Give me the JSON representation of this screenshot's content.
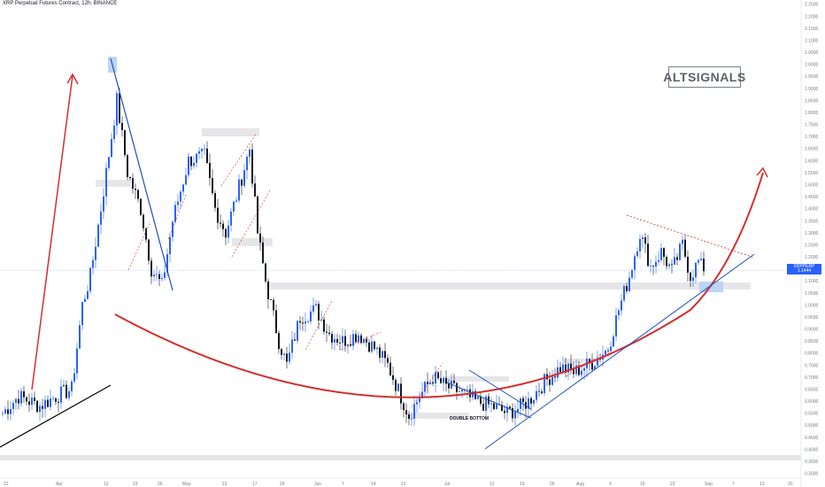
{
  "header": {
    "title": "XRP Perpetual Futures Contract, 12h, BINANCE"
  },
  "brand": {
    "label": "ALTSIGNALS"
  },
  "current_price": {
    "label": "XRPPERP",
    "value": "1.1444",
    "countdown": "03:58:25"
  },
  "annotations": {
    "double_bottom": "DOUBLE BOTTOM"
  },
  "colors": {
    "up": "#2962ff",
    "down": "#131722",
    "curve": "#d32f2f",
    "trendline": "#1e4fb8",
    "zone": "#e6e6e9",
    "blue_zone": "#bcd4f5"
  },
  "chart_data": {
    "type": "candlestick",
    "title": "XRP Perpetual Futures Contract, 12h, BINANCE",
    "x_ticks": [
      "22",
      "Apr",
      "12",
      "19",
      "26",
      "May",
      "10",
      "17",
      "24",
      "Jun",
      "7",
      "14",
      "21",
      "Jul",
      "12",
      "19",
      "26",
      "Aug",
      "9",
      "16",
      "23",
      "Sep",
      "7",
      "13",
      "20"
    ],
    "y_ticks": [
      "2.2500",
      "2.2000",
      "2.1500",
      "2.1000",
      "2.0500",
      "2.0000",
      "1.9500",
      "1.9000",
      "1.8500",
      "1.8000",
      "1.7500",
      "1.7000",
      "1.6500",
      "1.6000",
      "1.5500",
      "1.5000",
      "1.4500",
      "1.4000",
      "1.3500",
      "1.3000",
      "1.2500",
      "1.2000",
      "1.1500",
      "1.1000",
      "1.0500",
      "1.0000",
      "0.9500",
      "0.9000",
      "0.8500",
      "0.8000",
      "0.7500",
      "0.7000",
      "0.6500",
      "0.6000",
      "0.5500",
      "0.5000",
      "0.4500",
      "0.4000",
      "0.3500",
      "0.3000"
    ],
    "ylim": [
      0.28,
      2.26
    ],
    "last_price": 1.1444,
    "legend_position": "none",
    "grid": false,
    "anchors": [
      {
        "i": 0,
        "v": 0.55
      },
      {
        "i": 6,
        "v": 0.62
      },
      {
        "i": 14,
        "v": 0.58
      },
      {
        "i": 20,
        "v": 0.62
      },
      {
        "i": 26,
        "v": 0.65
      },
      {
        "i": 30,
        "v": 1.0
      },
      {
        "i": 33,
        "v": 1.12
      },
      {
        "i": 37,
        "v": 1.4
      },
      {
        "i": 43,
        "v": 1.85
      },
      {
        "i": 47,
        "v": 1.55
      },
      {
        "i": 52,
        "v": 1.4
      },
      {
        "i": 56,
        "v": 1.15
      },
      {
        "i": 60,
        "v": 1.08
      },
      {
        "i": 64,
        "v": 1.35
      },
      {
        "i": 70,
        "v": 1.6
      },
      {
        "i": 76,
        "v": 1.62
      },
      {
        "i": 80,
        "v": 1.4
      },
      {
        "i": 84,
        "v": 1.3
      },
      {
        "i": 88,
        "v": 1.45
      },
      {
        "i": 93,
        "v": 1.65
      },
      {
        "i": 96,
        "v": 1.3
      },
      {
        "i": 99,
        "v": 1.1
      },
      {
        "i": 104,
        "v": 0.85
      },
      {
        "i": 107,
        "v": 0.75
      },
      {
        "i": 112,
        "v": 0.95
      },
      {
        "i": 118,
        "v": 0.98
      },
      {
        "i": 123,
        "v": 0.88
      },
      {
        "i": 128,
        "v": 0.85
      },
      {
        "i": 134,
        "v": 0.88
      },
      {
        "i": 140,
        "v": 0.82
      },
      {
        "i": 145,
        "v": 0.75
      },
      {
        "i": 150,
        "v": 0.62
      },
      {
        "i": 153,
        "v": 0.54
      },
      {
        "i": 157,
        "v": 0.62
      },
      {
        "i": 162,
        "v": 0.7
      },
      {
        "i": 167,
        "v": 0.66
      },
      {
        "i": 172,
        "v": 0.64
      },
      {
        "i": 178,
        "v": 0.6
      },
      {
        "i": 184,
        "v": 0.58
      },
      {
        "i": 190,
        "v": 0.55
      },
      {
        "i": 194,
        "v": 0.57
      },
      {
        "i": 198,
        "v": 0.6
      },
      {
        "i": 204,
        "v": 0.68
      },
      {
        "i": 210,
        "v": 0.74
      },
      {
        "i": 215,
        "v": 0.72
      },
      {
        "i": 222,
        "v": 0.76
      },
      {
        "i": 228,
        "v": 0.82
      },
      {
        "i": 232,
        "v": 0.98
      },
      {
        "i": 236,
        "v": 1.12
      },
      {
        "i": 240,
        "v": 1.3
      },
      {
        "i": 244,
        "v": 1.16
      },
      {
        "i": 248,
        "v": 1.22
      },
      {
        "i": 252,
        "v": 1.14
      },
      {
        "i": 256,
        "v": 1.25
      },
      {
        "i": 259,
        "v": 1.12
      },
      {
        "i": 262,
        "v": 1.18
      },
      {
        "i": 264,
        "v": 1.14
      }
    ]
  }
}
